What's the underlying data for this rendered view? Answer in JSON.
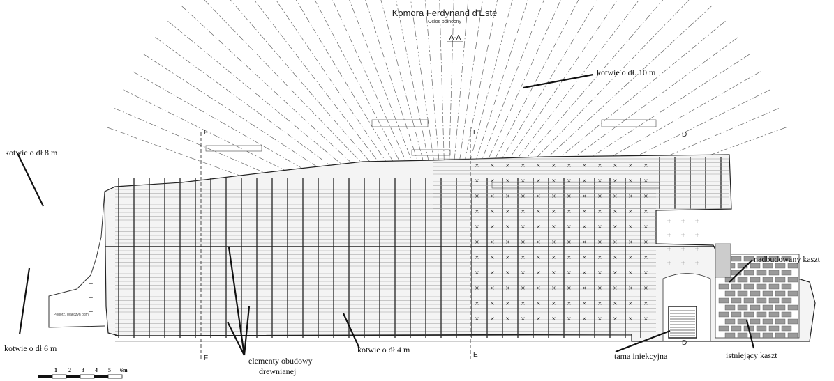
{
  "title": "Komora Ferdynand d'Este",
  "subtitle": "Ocios północny",
  "section_main": "A-A",
  "section_markers": [
    "F",
    "E",
    "D"
  ],
  "annotations": {
    "anchors_10m": "kotwie o dł. 10 m",
    "anchors_8m": "kotwie o dł 8 m",
    "anchors_6m": "kotwie o dł 6 m",
    "anchors_4m": "kotwie o dł 4 m",
    "timber_line1": "elementy obudowy",
    "timber_line2": "drewnianej",
    "injection_dam": "tama iniekcyjna",
    "existing_crib": "istniejący kaszt",
    "raised_crib": "nadbudowany kaszt"
  },
  "small_note": "Pogorz. Wałtczyn pdm.",
  "scale_bar": {
    "labels": [
      "1",
      "2",
      "3",
      "4",
      "5",
      "6m"
    ]
  },
  "colors": {
    "line": "#222222",
    "grid": "#555555",
    "hatch": "#7a7a7a",
    "crib": "#9a9a9a"
  }
}
